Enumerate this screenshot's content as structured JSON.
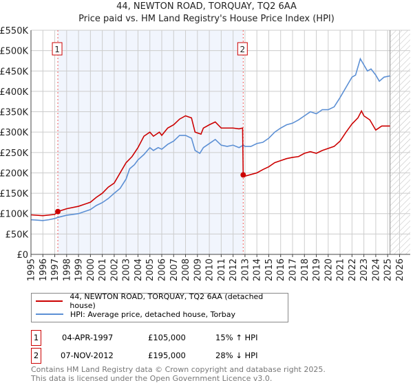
{
  "chart_data": {
    "type": "line",
    "title": "44, NEWTON ROAD, TORQUAY, TQ2 6AA",
    "subtitle": "Price paid vs. HM Land Registry's House Price Index (HPI)",
    "xlim": [
      1995,
      2026.9
    ],
    "ylim": [
      0,
      550000
    ],
    "x_ticks": [
      "1995",
      "1996",
      "1997",
      "1998",
      "1999",
      "2000",
      "2001",
      "2002",
      "2003",
      "2004",
      "2005",
      "2006",
      "2007",
      "2008",
      "2009",
      "2010",
      "2011",
      "2012",
      "2013",
      "2014",
      "2015",
      "2016",
      "2017",
      "2018",
      "2019",
      "2020",
      "2021",
      "2022",
      "2023",
      "2024",
      "2025",
      "2026"
    ],
    "y_ticks": [
      {
        "v": 0,
        "label": "£0"
      },
      {
        "v": 50000,
        "label": "£50K"
      },
      {
        "v": 100000,
        "label": "£100K"
      },
      {
        "v": 150000,
        "label": "£150K"
      },
      {
        "v": 200000,
        "label": "£200K"
      },
      {
        "v": 250000,
        "label": "£250K"
      },
      {
        "v": 300000,
        "label": "£300K"
      },
      {
        "v": 350000,
        "label": "£350K"
      },
      {
        "v": 400000,
        "label": "£400K"
      },
      {
        "v": 450000,
        "label": "£450K"
      },
      {
        "v": 500000,
        "label": "£500K"
      },
      {
        "v": 550000,
        "label": "£550K"
      }
    ],
    "grid": true,
    "shaded_range": [
      1997.26,
      2012.85
    ],
    "future_hatch_from": 2025.2,
    "series": [
      {
        "name": "44, NEWTON ROAD, TORQUAY, TQ2 6AA (detached house)",
        "color": "#cc0000",
        "points": [
          [
            1995,
            97
          ],
          [
            1996,
            95
          ],
          [
            1997,
            98
          ],
          [
            1997.26,
            105
          ],
          [
            1998,
            112
          ],
          [
            1999,
            118
          ],
          [
            2000,
            128
          ],
          [
            2000.5,
            140
          ],
          [
            2001,
            150
          ],
          [
            2001.5,
            165
          ],
          [
            2002,
            175
          ],
          [
            2002.5,
            200
          ],
          [
            2003,
            225
          ],
          [
            2003.5,
            240
          ],
          [
            2004,
            262
          ],
          [
            2004.5,
            290
          ],
          [
            2005,
            300
          ],
          [
            2005.3,
            290
          ],
          [
            2005.8,
            300
          ],
          [
            2006,
            292
          ],
          [
            2006.5,
            310
          ],
          [
            2007,
            318
          ],
          [
            2007.5,
            332
          ],
          [
            2008,
            340
          ],
          [
            2008.5,
            335
          ],
          [
            2008.8,
            300
          ],
          [
            2009.3,
            295
          ],
          [
            2009.5,
            310
          ],
          [
            2010,
            318
          ],
          [
            2010.5,
            325
          ],
          [
            2011,
            310
          ],
          [
            2011.5,
            310
          ],
          [
            2012,
            310
          ],
          [
            2012.5,
            308
          ],
          [
            2012.8,
            310
          ],
          [
            2012.85,
            195
          ],
          [
            2013,
            192
          ],
          [
            2014,
            200
          ],
          [
            2014.5,
            208
          ],
          [
            2015,
            215
          ],
          [
            2015.5,
            225
          ],
          [
            2016,
            230
          ],
          [
            2016.5,
            235
          ],
          [
            2017,
            238
          ],
          [
            2017.5,
            240
          ],
          [
            2018,
            248
          ],
          [
            2018.5,
            252
          ],
          [
            2019,
            248
          ],
          [
            2019.5,
            255
          ],
          [
            2020,
            260
          ],
          [
            2020.5,
            265
          ],
          [
            2021,
            278
          ],
          [
            2021.5,
            300
          ],
          [
            2022,
            320
          ],
          [
            2022.5,
            335
          ],
          [
            2022.8,
            352
          ],
          [
            2023,
            340
          ],
          [
            2023.5,
            330
          ],
          [
            2024,
            305
          ],
          [
            2024.5,
            315
          ],
          [
            2025.2,
            315
          ]
        ]
      },
      {
        "name": "HPI: Average price, detached house, Torbay",
        "color": "#5b8fd4",
        "points": [
          [
            1995,
            85
          ],
          [
            1995.5,
            84
          ],
          [
            1996,
            83
          ],
          [
            1996.5,
            85
          ],
          [
            1997,
            88
          ],
          [
            1997.3,
            91
          ],
          [
            1998,
            96
          ],
          [
            1998.5,
            98
          ],
          [
            1999,
            100
          ],
          [
            1999.5,
            105
          ],
          [
            2000,
            110
          ],
          [
            2000.5,
            120
          ],
          [
            2001,
            127
          ],
          [
            2001.5,
            137
          ],
          [
            2002,
            150
          ],
          [
            2002.5,
            162
          ],
          [
            2003,
            185
          ],
          [
            2003.3,
            210
          ],
          [
            2003.7,
            220
          ],
          [
            2004,
            232
          ],
          [
            2004.5,
            245
          ],
          [
            2005,
            262
          ],
          [
            2005.3,
            255
          ],
          [
            2005.7,
            262
          ],
          [
            2006,
            258
          ],
          [
            2006.5,
            270
          ],
          [
            2007,
            278
          ],
          [
            2007.5,
            292
          ],
          [
            2008,
            292
          ],
          [
            2008.5,
            285
          ],
          [
            2008.8,
            255
          ],
          [
            2009.2,
            248
          ],
          [
            2009.5,
            262
          ],
          [
            2010,
            272
          ],
          [
            2010.5,
            282
          ],
          [
            2011,
            268
          ],
          [
            2011.5,
            265
          ],
          [
            2012,
            268
          ],
          [
            2012.5,
            262
          ],
          [
            2012.85,
            268
          ],
          [
            2013,
            265
          ],
          [
            2013.5,
            265
          ],
          [
            2014,
            272
          ],
          [
            2014.5,
            275
          ],
          [
            2015,
            285
          ],
          [
            2015.5,
            300
          ],
          [
            2016,
            310
          ],
          [
            2016.5,
            318
          ],
          [
            2017,
            322
          ],
          [
            2017.5,
            330
          ],
          [
            2018,
            340
          ],
          [
            2018.5,
            350
          ],
          [
            2019,
            345
          ],
          [
            2019.5,
            355
          ],
          [
            2020,
            355
          ],
          [
            2020.5,
            362
          ],
          [
            2021,
            385
          ],
          [
            2021.5,
            410
          ],
          [
            2022,
            435
          ],
          [
            2022.3,
            440
          ],
          [
            2022.7,
            480
          ],
          [
            2023,
            465
          ],
          [
            2023.3,
            450
          ],
          [
            2023.6,
            455
          ],
          [
            2024,
            440
          ],
          [
            2024.3,
            425
          ],
          [
            2024.7,
            435
          ],
          [
            2025.2,
            438
          ]
        ]
      }
    ],
    "sales": [
      {
        "id": "1",
        "x": 1997.26,
        "y": 105
      },
      {
        "id": "2",
        "x": 2012.85,
        "y": 195
      }
    ]
  },
  "legend": {
    "property": "44, NEWTON ROAD, TORQUAY, TQ2 6AA (detached house)",
    "hpi": "HPI: Average price, detached house, Torbay"
  },
  "transactions": [
    {
      "id": "1",
      "date": "04-APR-1997",
      "price": "£105,000",
      "delta": "15% ↑ HPI"
    },
    {
      "id": "2",
      "date": "07-NOV-2012",
      "price": "£195,000",
      "delta": "28% ↓ HPI"
    }
  ],
  "footer": {
    "line1": "Contains HM Land Registry data © Crown copyright and database right 2025.",
    "line2": "This data is licensed under the Open Government Licence v3.0."
  }
}
